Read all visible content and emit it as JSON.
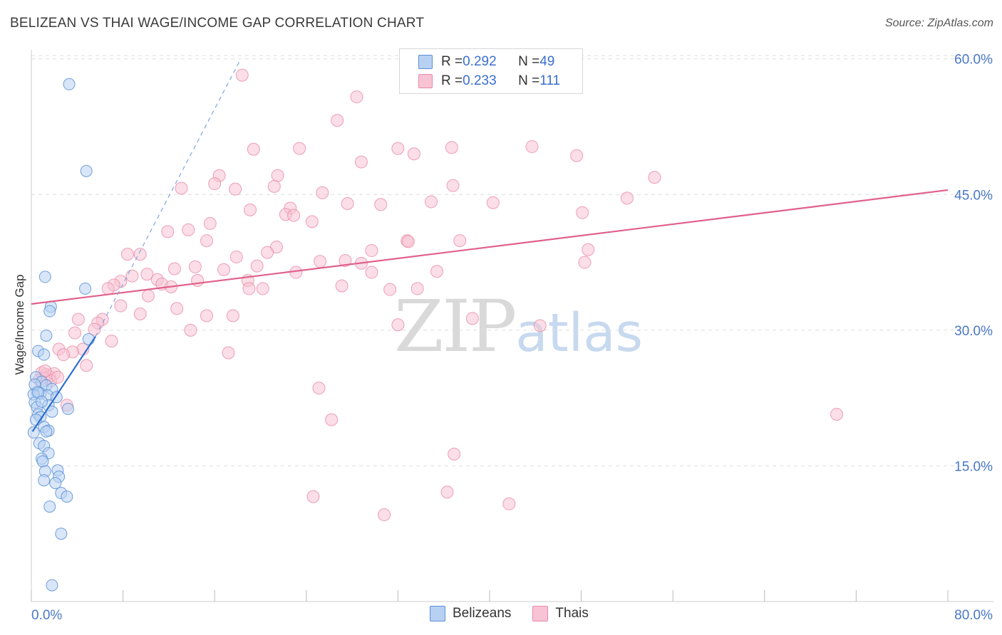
{
  "title": "BELIZEAN VS THAI WAGE/INCOME GAP CORRELATION CHART",
  "source": "Source: ZipAtlas.com",
  "watermark": {
    "zip": "ZIP",
    "atlas": "atlas"
  },
  "legend": {
    "rows": [
      {
        "r_label": "R = ",
        "r_value": "0.292",
        "n_label": "N = ",
        "n_value": "49"
      },
      {
        "r_label": "R = ",
        "r_value": "0.233",
        "n_label": "N = ",
        "n_value": "111"
      }
    ]
  },
  "bottom_legend": {
    "belizeans": "Belizeans",
    "thais": "Thais"
  },
  "colors": {
    "belizean_fill": "#b8d1f3",
    "belizean_stroke": "#5b8fd6",
    "belizean_line": "#2f6fd0",
    "thai_fill": "#f8c3d4",
    "thai_stroke": "#e98aa8",
    "thai_line": "#e0608a",
    "tick_text": "#4a78c9",
    "grid": "#dedede"
  },
  "chart_data": {
    "type": "scatter",
    "title": "BELIZEAN VS THAI WAGE/INCOME GAP CORRELATION CHART",
    "xlabel": "",
    "ylabel": "Wage/Income Gap",
    "xlim": [
      0,
      80
    ],
    "ylim": [
      0,
      61
    ],
    "x_tick_labels": [
      "0.0%",
      "80.0%"
    ],
    "y_ticks": [
      15,
      30,
      45,
      60
    ],
    "y_tick_labels": [
      "15.0%",
      "30.0%",
      "45.0%",
      "60.0%"
    ],
    "grid": "horizontal dashed",
    "legend_position": "top-center",
    "series": [
      {
        "name": "Belizeans",
        "R": 0.292,
        "N": 49,
        "trend": {
          "x": [
            0.1,
            5.6
          ],
          "y": [
            18.8,
            29.3
          ]
        },
        "trend_extension": {
          "x": [
            5.6,
            18.2
          ],
          "y": [
            29.3,
            59.8
          ]
        },
        "points": [
          [
            3.3,
            57.2
          ],
          [
            4.8,
            47.6
          ],
          [
            1.2,
            35.9
          ],
          [
            4.7,
            34.6
          ],
          [
            1.7,
            32.6
          ],
          [
            1.6,
            32.1
          ],
          [
            1.3,
            29.4
          ],
          [
            5.0,
            29.0
          ],
          [
            0.6,
            27.7
          ],
          [
            1.1,
            27.3
          ],
          [
            0.4,
            24.8
          ],
          [
            0.9,
            24.3
          ],
          [
            1.3,
            23.9
          ],
          [
            1.8,
            23.5
          ],
          [
            0.5,
            23.2
          ],
          [
            0.8,
            23.0
          ],
          [
            0.2,
            22.9
          ],
          [
            1.4,
            22.8
          ],
          [
            2.2,
            22.6
          ],
          [
            0.3,
            22.0
          ],
          [
            1.5,
            21.7
          ],
          [
            0.5,
            21.5
          ],
          [
            3.2,
            21.3
          ],
          [
            1.8,
            21.0
          ],
          [
            0.6,
            20.7
          ],
          [
            0.8,
            20.4
          ],
          [
            1.1,
            19.3
          ],
          [
            1.5,
            18.9
          ],
          [
            0.2,
            18.7
          ],
          [
            0.7,
            17.5
          ],
          [
            1.1,
            17.2
          ],
          [
            1.5,
            16.4
          ],
          [
            0.9,
            15.8
          ],
          [
            1.0,
            15.5
          ],
          [
            2.3,
            14.5
          ],
          [
            1.2,
            14.4
          ],
          [
            2.4,
            13.8
          ],
          [
            1.1,
            13.4
          ],
          [
            2.1,
            13.1
          ],
          [
            2.6,
            12.0
          ],
          [
            3.1,
            11.6
          ],
          [
            1.6,
            10.5
          ],
          [
            2.6,
            7.5
          ],
          [
            1.8,
            1.8
          ],
          [
            0.3,
            24.0
          ],
          [
            0.6,
            23.1
          ],
          [
            0.9,
            22.1
          ],
          [
            0.4,
            20.1
          ],
          [
            1.3,
            18.8
          ]
        ]
      },
      {
        "name": "Thais",
        "R": 0.233,
        "N": 111,
        "trend": {
          "x": [
            0,
            80
          ],
          "y": [
            32.9,
            45.5
          ]
        },
        "points": [
          [
            18.4,
            58.2
          ],
          [
            28.4,
            55.8
          ],
          [
            26.7,
            53.2
          ],
          [
            19.4,
            50.0
          ],
          [
            23.4,
            50.1
          ],
          [
            32.0,
            50.1
          ],
          [
            36.7,
            50.2
          ],
          [
            43.7,
            50.3
          ],
          [
            33.4,
            49.5
          ],
          [
            47.6,
            49.3
          ],
          [
            28.8,
            48.6
          ],
          [
            16.4,
            47.1
          ],
          [
            21.5,
            47.1
          ],
          [
            54.4,
            46.9
          ],
          [
            16.0,
            46.2
          ],
          [
            36.8,
            46.0
          ],
          [
            13.1,
            45.7
          ],
          [
            17.8,
            45.6
          ],
          [
            21.2,
            45.9
          ],
          [
            25.4,
            45.2
          ],
          [
            34.9,
            44.2
          ],
          [
            27.6,
            44.0
          ],
          [
            30.5,
            43.9
          ],
          [
            52.0,
            44.6
          ],
          [
            19.1,
            43.3
          ],
          [
            22.6,
            43.5
          ],
          [
            22.2,
            42.8
          ],
          [
            22.9,
            42.7
          ],
          [
            40.3,
            44.1
          ],
          [
            48.1,
            43.0
          ],
          [
            15.6,
            41.8
          ],
          [
            24.5,
            42.0
          ],
          [
            11.9,
            40.9
          ],
          [
            13.7,
            41.1
          ],
          [
            15.3,
            39.9
          ],
          [
            32.8,
            39.9
          ],
          [
            37.4,
            39.9
          ],
          [
            32.9,
            39.8
          ],
          [
            8.4,
            38.4
          ],
          [
            9.5,
            38.4
          ],
          [
            21.4,
            39.2
          ],
          [
            20.6,
            38.6
          ],
          [
            17.9,
            38.1
          ],
          [
            29.7,
            38.8
          ],
          [
            48.6,
            38.9
          ],
          [
            25.2,
            37.6
          ],
          [
            27.4,
            37.7
          ],
          [
            28.8,
            37.4
          ],
          [
            48.3,
            37.5
          ],
          [
            14.3,
            37.0
          ],
          [
            12.5,
            36.8
          ],
          [
            16.8,
            36.7
          ],
          [
            19.7,
            37.1
          ],
          [
            23.1,
            36.4
          ],
          [
            29.7,
            36.4
          ],
          [
            35.4,
            36.5
          ],
          [
            8.8,
            36.0
          ],
          [
            10.1,
            36.2
          ],
          [
            7.8,
            35.4
          ],
          [
            11.0,
            35.6
          ],
          [
            11.4,
            35.1
          ],
          [
            7.2,
            35.0
          ],
          [
            14.5,
            35.5
          ],
          [
            18.9,
            35.5
          ],
          [
            12.2,
            34.8
          ],
          [
            6.7,
            34.6
          ],
          [
            19.0,
            34.6
          ],
          [
            20.2,
            34.6
          ],
          [
            27.1,
            34.9
          ],
          [
            31.3,
            34.5
          ],
          [
            33.7,
            34.6
          ],
          [
            10.2,
            33.8
          ],
          [
            12.7,
            32.4
          ],
          [
            7.8,
            32.7
          ],
          [
            9.5,
            31.8
          ],
          [
            15.3,
            31.6
          ],
          [
            17.6,
            31.6
          ],
          [
            4.1,
            31.2
          ],
          [
            6.2,
            31.2
          ],
          [
            5.8,
            30.8
          ],
          [
            38.5,
            31.3
          ],
          [
            44.4,
            30.5
          ],
          [
            32.0,
            30.6
          ],
          [
            5.5,
            30.1
          ],
          [
            13.9,
            30.0
          ],
          [
            3.8,
            29.7
          ],
          [
            7.0,
            28.8
          ],
          [
            4.5,
            27.9
          ],
          [
            2.4,
            27.9
          ],
          [
            3.6,
            27.6
          ],
          [
            17.2,
            27.5
          ],
          [
            2.8,
            27.3
          ],
          [
            4.8,
            26.1
          ],
          [
            0.9,
            25.3
          ],
          [
            1.3,
            25.1
          ],
          [
            1.6,
            24.9
          ],
          [
            2.0,
            25.2
          ],
          [
            1.1,
            24.7
          ],
          [
            1.7,
            24.4
          ],
          [
            0.7,
            24.5
          ],
          [
            25.1,
            23.6
          ],
          [
            3.1,
            21.7
          ],
          [
            70.3,
            20.7
          ],
          [
            26.2,
            20.1
          ],
          [
            36.9,
            16.3
          ],
          [
            24.6,
            11.6
          ],
          [
            36.3,
            12.1
          ],
          [
            41.7,
            10.8
          ],
          [
            30.8,
            9.6
          ],
          [
            1.2,
            25.5
          ],
          [
            2.3,
            24.8
          ]
        ]
      }
    ]
  }
}
